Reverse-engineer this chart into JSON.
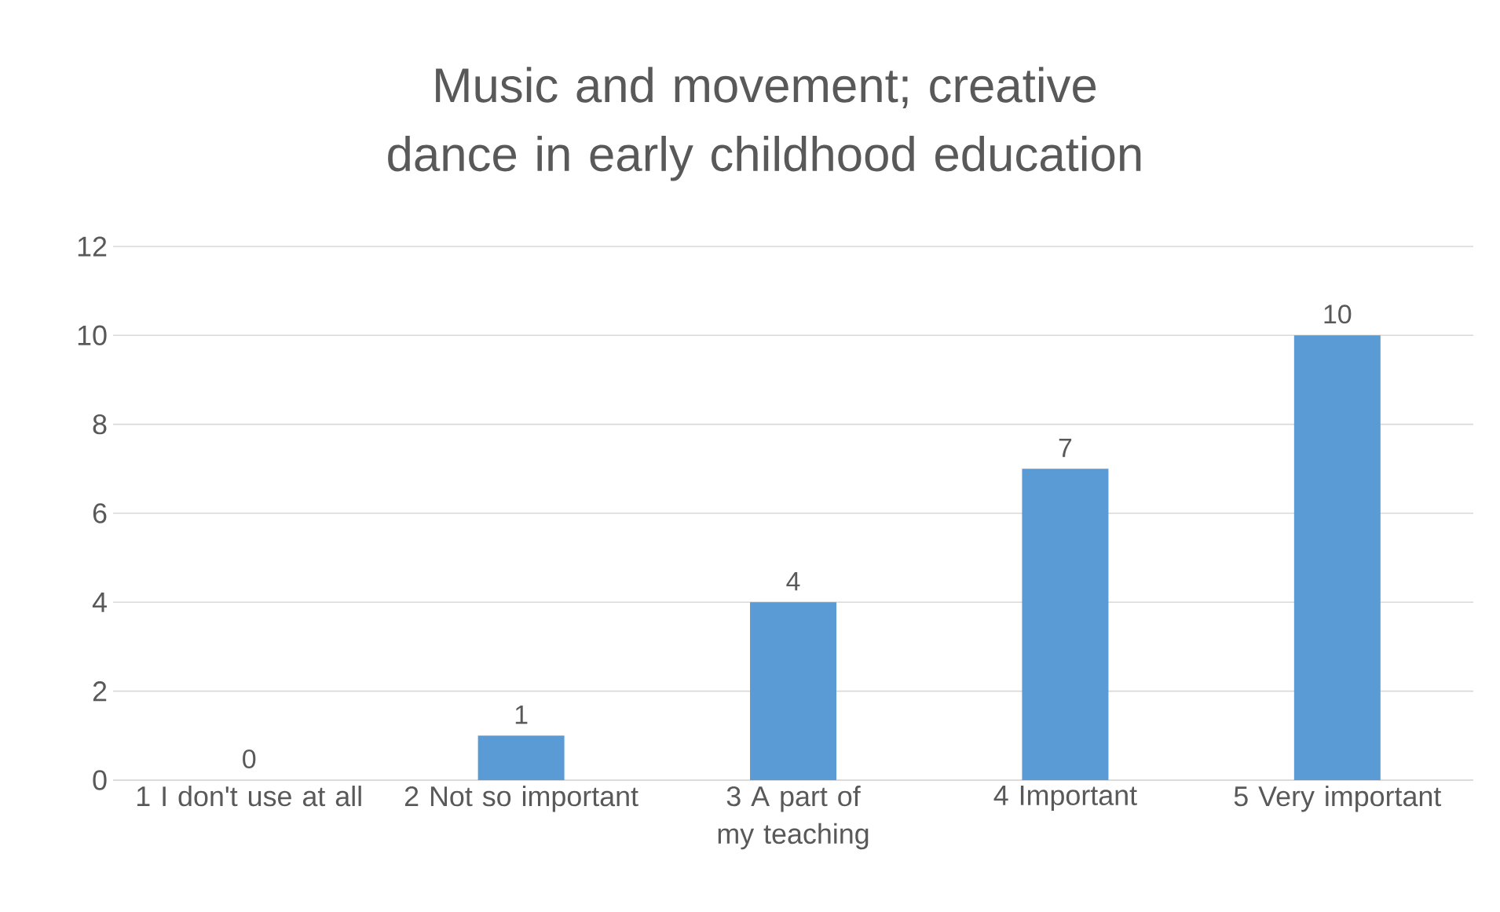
{
  "chart_data": {
    "type": "bar",
    "title": "Music and movement; creative dance in early childhood education",
    "categories": [
      "1 I don't use at all",
      "2 Not so important",
      "3 A part of my teaching",
      "4 Important",
      "5 Very important"
    ],
    "values": [
      0,
      1,
      4,
      7,
      10
    ],
    "color": "#5b9bd5",
    "ylim": [
      0,
      12
    ],
    "yticks": [
      0,
      2,
      4,
      6,
      8,
      10,
      12
    ],
    "grid": "y",
    "data_labels": true
  }
}
